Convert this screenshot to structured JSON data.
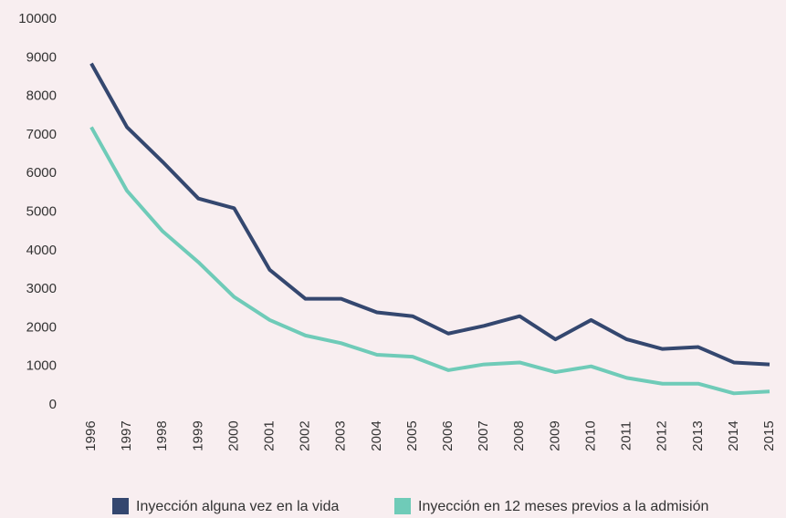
{
  "chart_data": {
    "type": "line",
    "categories": [
      "1996",
      "1997",
      "1998",
      "1999",
      "2000",
      "2001",
      "2002",
      "2003",
      "2004",
      "2005",
      "2006",
      "2007",
      "2008",
      "2009",
      "2010",
      "2011",
      "2012",
      "2013",
      "2014",
      "2015"
    ],
    "series": [
      {
        "name": "Inyección alguna vez en la vida",
        "color": "#34476f",
        "values": [
          8850,
          7200,
          6300,
          5350,
          5100,
          3500,
          2750,
          2750,
          2400,
          2300,
          1850,
          2050,
          2300,
          1700,
          2200,
          1700,
          1450,
          1500,
          1100,
          1050
        ]
      },
      {
        "name": "Inyección en 12 meses previos a la admisión",
        "color": "#6fcbb8",
        "values": [
          7200,
          5550,
          4500,
          3700,
          2800,
          2200,
          1800,
          1600,
          1300,
          1250,
          900,
          1050,
          1100,
          850,
          1000,
          700,
          550,
          550,
          300,
          350
        ]
      }
    ],
    "ylim": [
      0,
      10000
    ],
    "yticks": [
      0,
      1000,
      2000,
      3000,
      4000,
      5000,
      6000,
      7000,
      8000,
      9000,
      10000
    ],
    "grid": false,
    "legend": "bottom"
  }
}
